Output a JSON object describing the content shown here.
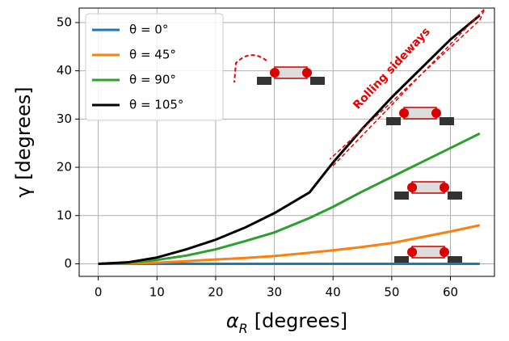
{
  "chart_data": {
    "type": "line",
    "y_label": "γ [degrees]",
    "x_label": {
      "symbol": "α",
      "subscript": "R",
      "text": "[degrees]"
    },
    "annotation": "Rolling sideways",
    "x": [
      0,
      5,
      10,
      15,
      20,
      25,
      30,
      36,
      40,
      45,
      50,
      55,
      60,
      65
    ],
    "series": [
      {
        "name": "θ = 0°",
        "color": "#1f77b4",
        "values": [
          0,
          0,
          0,
          0,
          0,
          0,
          0,
          0,
          0,
          0,
          0,
          0,
          0,
          0
        ]
      },
      {
        "name": "θ = 45°",
        "color": "#ff7f0e",
        "values": [
          0,
          0.05,
          0.25,
          0.55,
          0.9,
          1.2,
          1.6,
          2.3,
          2.8,
          3.5,
          4.3,
          5.5,
          6.7,
          8.0
        ]
      },
      {
        "name": "θ = 90°",
        "color": "#2ca02c",
        "values": [
          0,
          0.2,
          0.8,
          1.7,
          3,
          4.7,
          6.5,
          9.5,
          11.8,
          15,
          18,
          21,
          24,
          27
        ]
      },
      {
        "name": "θ = 105°",
        "color": "#000000",
        "values": [
          0,
          0.3,
          1.3,
          3,
          5,
          7.5,
          10.5,
          14.8,
          21,
          28,
          34.5,
          40.5,
          46.5,
          51.5
        ]
      }
    ],
    "xlim": [
      -3.25,
      67.5
    ],
    "ylim": [
      -2.6,
      53
    ],
    "xticks": [
      0,
      10,
      20,
      30,
      40,
      50,
      60
    ],
    "yticks": [
      0,
      10,
      20,
      30,
      40,
      50
    ],
    "grid": true,
    "legend": "upper-left"
  }
}
